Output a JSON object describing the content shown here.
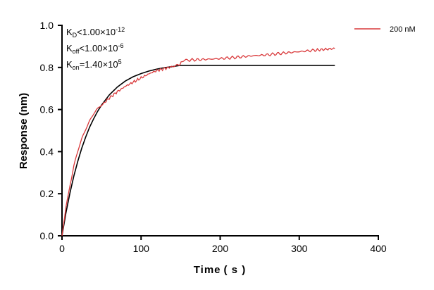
{
  "chart_data": {
    "type": "line",
    "title": "",
    "xlabel": "Time ( s )",
    "ylabel": "Response (nm)",
    "xlim": [
      0,
      400
    ],
    "ylim": [
      0,
      1.0
    ],
    "xticks": [
      "0",
      "100",
      "200",
      "300",
      "400"
    ],
    "yticks": [
      "0.0",
      "0.2",
      "0.4",
      "0.6",
      "0.8",
      "1.0"
    ],
    "grid": false,
    "legend_placement": "top-right",
    "annotations": {
      "kd": {
        "sym": "K",
        "sub": "D",
        "rel": "<1.00×10",
        "exp": "-12"
      },
      "koff": {
        "sym": "K",
        "sub": "off",
        "rel": "<1.00×10",
        "exp": "-6"
      },
      "kon": {
        "sym": "K",
        "sub": "on",
        "rel": "=1.40×10",
        "exp": "5"
      }
    },
    "series": [
      {
        "name": "200 nM",
        "color": "#d9383a",
        "x": [
          0,
          5,
          10,
          15,
          20,
          25,
          30,
          35,
          40,
          45,
          50,
          60,
          70,
          80,
          90,
          100,
          110,
          120,
          130,
          140,
          148,
          152,
          160,
          180,
          200,
          220,
          240,
          260,
          280,
          300,
          320,
          345
        ],
        "y": [
          0,
          0.14,
          0.24,
          0.33,
          0.4,
          0.46,
          0.51,
          0.55,
          0.58,
          0.6,
          0.62,
          0.655,
          0.685,
          0.71,
          0.73,
          0.75,
          0.77,
          0.785,
          0.795,
          0.805,
          0.81,
          0.83,
          0.835,
          0.838,
          0.842,
          0.848,
          0.855,
          0.86,
          0.868,
          0.875,
          0.882,
          0.89
        ]
      },
      {
        "role": "fit",
        "color": "#000000",
        "x": [
          0,
          5,
          10,
          15,
          20,
          25,
          30,
          35,
          40,
          45,
          50,
          60,
          70,
          80,
          90,
          100,
          110,
          120,
          130,
          140,
          150,
          345
        ],
        "y": [
          0,
          0.109,
          0.202,
          0.284,
          0.355,
          0.417,
          0.47,
          0.517,
          0.556,
          0.591,
          0.621,
          0.67,
          0.707,
          0.735,
          0.756,
          0.771,
          0.783,
          0.792,
          0.799,
          0.804,
          0.81,
          0.81
        ]
      }
    ]
  }
}
